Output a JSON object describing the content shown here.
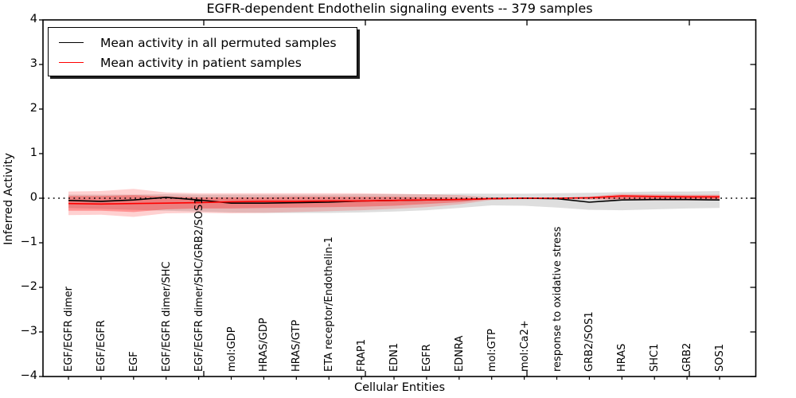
{
  "figure": {
    "background": "#ffffff"
  },
  "chart_data": {
    "type": "line",
    "title": "EGFR-dependent Endothelin signaling events -- 379 samples",
    "xlabel": "Cellular Entities",
    "ylabel": "Inferred Activity",
    "ylim": [
      -4,
      4
    ],
    "grid": false,
    "yticks": [
      {
        "value": 4,
        "label": "4"
      },
      {
        "value": 3,
        "label": "3"
      },
      {
        "value": 2,
        "label": "2"
      },
      {
        "value": 1,
        "label": "1"
      },
      {
        "value": 0,
        "label": "0"
      },
      {
        "value": -1,
        "label": "−1"
      },
      {
        "value": -2,
        "label": "−2"
      },
      {
        "value": -3,
        "label": "−3"
      },
      {
        "value": -4,
        "label": "−4"
      }
    ],
    "zero_reference_line": {
      "y": 0,
      "style": "dotted",
      "color": "#000000"
    },
    "legend": {
      "position": "upper left",
      "entries": [
        {
          "label": "Mean activity in all permuted samples",
          "color": "#000000"
        },
        {
          "label": "Mean activity in patient samples",
          "color": "#ff0000"
        }
      ]
    },
    "categories": [
      "EGF/EGFR dimer",
      "EGF/EGFR",
      "EGF",
      "EGF/EGFR dimer/SHC",
      "EGF/EGFR dimer/SHC/GRB2/SOS1",
      "mol:GDP",
      "HRAS/GDP",
      "HRAS/GTP",
      "ETA receptor/Endothelin-1",
      "FRAP1",
      "EDN1",
      "EGFR",
      "EDNRA",
      "mol:GTP",
      "mol:Ca2+",
      "response to oxidative stress",
      "GRB2/SOS1",
      "HRAS",
      "SHC1",
      "GRB2",
      "SOS1"
    ],
    "series": [
      {
        "name": "Mean activity in all permuted samples",
        "color": "#000000",
        "values": [
          -0.05,
          -0.07,
          -0.04,
          0.02,
          -0.04,
          -0.11,
          -0.11,
          -0.1,
          -0.09,
          -0.06,
          -0.05,
          -0.04,
          -0.03,
          -0.01,
          0.0,
          -0.01,
          -0.09,
          -0.04,
          -0.03,
          -0.03,
          -0.04
        ]
      },
      {
        "name": "Mean activity in patient samples",
        "color": "#ff0000",
        "values": [
          -0.12,
          -0.13,
          -0.12,
          -0.11,
          -0.1,
          -0.08,
          -0.07,
          -0.07,
          -0.06,
          -0.06,
          -0.05,
          -0.04,
          -0.03,
          -0.01,
          0.0,
          0.0,
          0.01,
          0.05,
          0.04,
          0.03,
          0.03
        ]
      }
    ],
    "bands": [
      {
        "name": "permuted samples spread",
        "color": "#000000",
        "opacity": 0.13,
        "upper": [
          0.08,
          0.08,
          0.08,
          0.09,
          0.08,
          0.08,
          0.08,
          0.08,
          0.08,
          0.09,
          0.09,
          0.09,
          0.1,
          0.1,
          0.1,
          0.11,
          0.12,
          0.14,
          0.15,
          0.15,
          0.16
        ],
        "lower": [
          -0.22,
          -0.24,
          -0.26,
          -0.28,
          -0.3,
          -0.32,
          -0.33,
          -0.33,
          -0.33,
          -0.32,
          -0.3,
          -0.27,
          -0.22,
          -0.16,
          -0.17,
          -0.21,
          -0.26,
          -0.27,
          -0.25,
          -0.23,
          -0.22
        ]
      },
      {
        "name": "patient samples spread outer",
        "color": "#ff0000",
        "opacity": 0.18,
        "upper": [
          0.15,
          0.16,
          0.21,
          0.13,
          0.11,
          0.11,
          0.11,
          0.11,
          0.11,
          0.11,
          0.1,
          0.09,
          0.07,
          0.02,
          0.01,
          0.01,
          0.04,
          0.1,
          0.09,
          0.08,
          0.08
        ],
        "lower": [
          -0.38,
          -0.37,
          -0.42,
          -0.34,
          -0.33,
          -0.34,
          -0.33,
          -0.31,
          -0.29,
          -0.27,
          -0.24,
          -0.2,
          -0.14,
          -0.04,
          -0.02,
          -0.02,
          -0.03,
          -0.05,
          -0.05,
          -0.05,
          -0.05
        ]
      },
      {
        "name": "patient samples spread inner",
        "color": "#ff0000",
        "opacity": 0.3,
        "upper": [
          0.05,
          0.05,
          0.07,
          0.04,
          0.02,
          0.02,
          0.02,
          0.03,
          0.03,
          0.03,
          0.03,
          0.02,
          0.01,
          0.0,
          0.0,
          0.0,
          0.02,
          0.07,
          0.06,
          0.06,
          0.06
        ],
        "lower": [
          -0.28,
          -0.28,
          -0.31,
          -0.25,
          -0.23,
          -0.23,
          -0.22,
          -0.21,
          -0.2,
          -0.19,
          -0.17,
          -0.13,
          -0.09,
          -0.02,
          -0.01,
          -0.01,
          -0.01,
          -0.02,
          -0.02,
          -0.02,
          -0.02
        ]
      }
    ]
  }
}
